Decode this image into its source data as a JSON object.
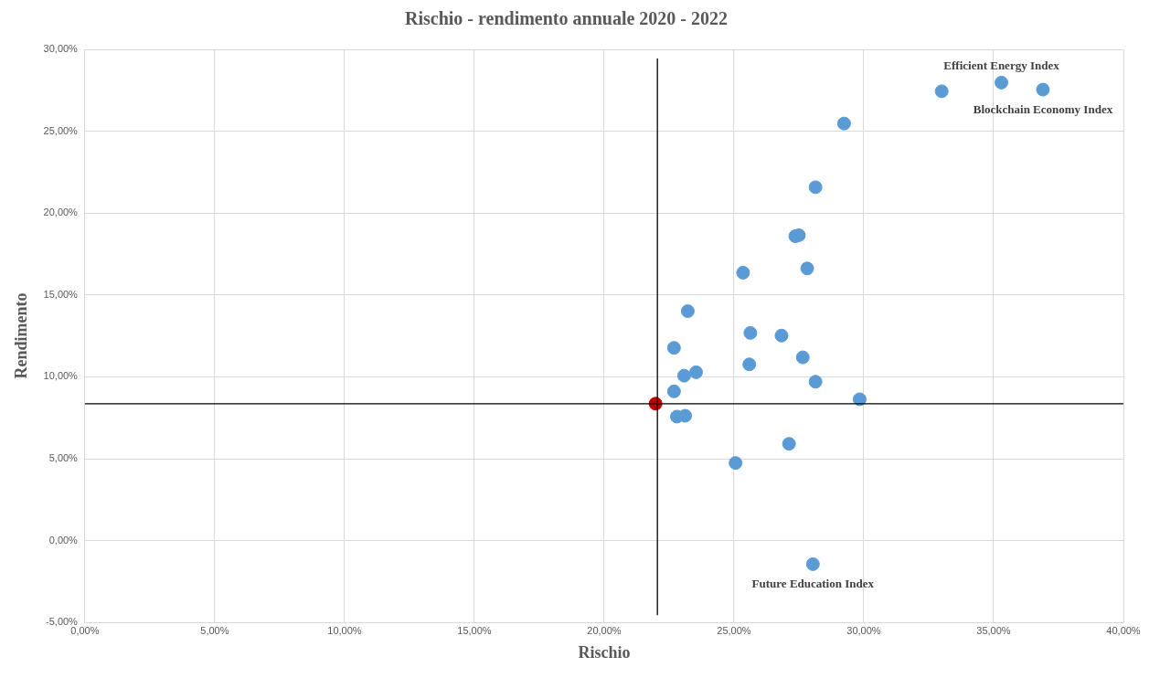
{
  "chart_data": {
    "type": "scatter",
    "title": "Rischio - rendimento annuale 2020 - 2022",
    "xlabel": "Rischio",
    "ylabel": "Rendimento",
    "series": [
      {
        "color": "#5b9bd5",
        "x": [
          33.0,
          35.3,
          36.9,
          29.24,
          28.14,
          27.36,
          27.5,
          25.35,
          27.82,
          23.22,
          25.63,
          26.83,
          22.69,
          27.65,
          25.59,
          23.08,
          23.54,
          28.14,
          22.69,
          29.84,
          22.8,
          23.12,
          27.12,
          25.06,
          28.04
        ],
        "values": [
          27.44,
          27.97,
          27.54,
          25.47,
          21.58,
          18.59,
          18.65,
          16.36,
          16.62,
          14.01,
          12.68,
          12.52,
          11.77,
          11.19,
          10.76,
          10.07,
          10.28,
          9.7,
          9.11,
          8.63,
          7.57,
          7.62,
          5.91,
          4.74,
          -1.44
        ]
      },
      {
        "color": "#c00000",
        "x": [
          21.98
        ],
        "values": [
          8.36
        ]
      }
    ],
    "xlim": [
      0,
      40
    ],
    "ylim": [
      -5,
      30
    ],
    "xticks": [
      {
        "value": 0,
        "label": "0,00%"
      },
      {
        "value": 5,
        "label": "5,00%"
      },
      {
        "value": 10,
        "label": "10,00%"
      },
      {
        "value": 15,
        "label": "15,00%"
      },
      {
        "value": 20,
        "label": "20,00%"
      },
      {
        "value": 25,
        "label": "25,00%"
      },
      {
        "value": 30,
        "label": "30,00%"
      },
      {
        "value": 35,
        "label": "35,00%"
      },
      {
        "value": 40,
        "label": "40,00%"
      }
    ],
    "yticks": [
      {
        "value": -5,
        "label": "-5,00%"
      },
      {
        "value": 0,
        "label": "0,00%"
      },
      {
        "value": 5,
        "label": "5,00%"
      },
      {
        "value": 10,
        "label": "10,00%"
      },
      {
        "value": 15,
        "label": "15,00%"
      },
      {
        "value": 20,
        "label": "20,00%"
      },
      {
        "value": 25,
        "label": "25,00%"
      },
      {
        "value": 30,
        "label": "30,00%"
      }
    ],
    "ref_lines": [
      {
        "axis": "x",
        "value": 22.05,
        "color": "#000000"
      },
      {
        "axis": "y",
        "value": 8.36,
        "color": "#000000"
      }
    ],
    "annotations": [
      {
        "text": "Efficient Energy Index",
        "x": 35.3,
        "y": 27.97
      },
      {
        "text": "Blockchain Economy Index",
        "x": 36.9,
        "y": 27.54
      },
      {
        "text": "Future Education Index",
        "x": 28.04,
        "y": -1.44
      }
    ],
    "grid": true,
    "marker": "circle",
    "legend": false
  }
}
